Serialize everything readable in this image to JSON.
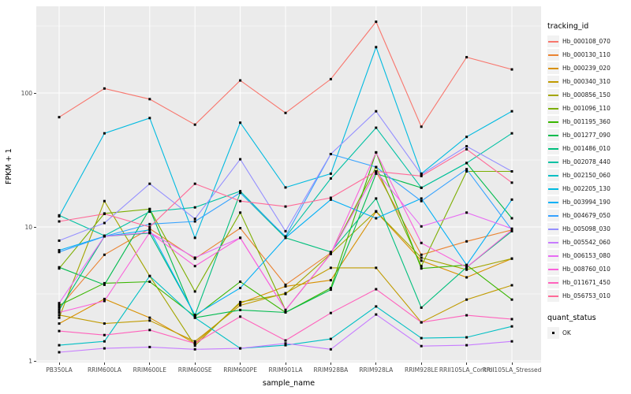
{
  "figure": {
    "background": "#FFFFFF",
    "panel_background": "#EBEBEB",
    "grid_color": "#FFFFFF",
    "tick_color": "#333333",
    "tick_label_color": "#4D4D4D",
    "point_color": "#000000"
  },
  "chart_data": {
    "type": "line",
    "title": "",
    "xlabel": "sample_name",
    "ylabel": "FPKM + 1",
    "y_scale": "log10",
    "ylim": [
      1,
      450
    ],
    "y_ticks": [
      1,
      10,
      100
    ],
    "y_minor_ticks": [
      3.162,
      31.62,
      316.2
    ],
    "grid": "on",
    "point_shape": "square",
    "legend": {
      "title": "tracking_id",
      "position": "right"
    },
    "legend2": {
      "title": "quant_status",
      "items": [
        {
          "label": "OK",
          "marker": "black-square"
        }
      ]
    },
    "categories": [
      "PB350LA",
      "RRIM600LA",
      "RRIM600LE",
      "RRIM600SE",
      "RRIM600PE",
      "RRIM901LA",
      "RRIM928BA",
      "RRIM928LA",
      "RRIM928LE",
      "RRII105LA_Control",
      "RRII105LA_Stressed"
    ],
    "series": [
      {
        "name": "Hb_000108_070",
        "color": "#F8766D",
        "values": [
          66,
          108,
          90,
          58,
          124,
          71,
          127,
          340,
          56,
          185,
          150
        ]
      },
      {
        "name": "Hb_000130_110",
        "color": "#EA8331",
        "values": [
          2.5,
          6.2,
          9.7,
          5.8,
          9.8,
          3.7,
          6.4,
          26,
          6.2,
          7.8,
          9.5
        ]
      },
      {
        "name": "Hb_000239_020",
        "color": "#D89000",
        "values": [
          1.9,
          2.9,
          2.1,
          1.35,
          2.7,
          3.6,
          4.0,
          13,
          5.6,
          4.2,
          5.8
        ]
      },
      {
        "name": "Hb_000340_310",
        "color": "#C09B00",
        "values": [
          2.2,
          1.9,
          2.0,
          1.4,
          2.6,
          3.2,
          4.95,
          4.95,
          1.94,
          2.87,
          3.67
        ]
      },
      {
        "name": "Hb_000856_150",
        "color": "#A3A500",
        "values": [
          2.1,
          15.6,
          4.3,
          1.3,
          2.75,
          3.16,
          6.3,
          13.1,
          5.9,
          4.8,
          5.8
        ]
      },
      {
        "name": "Hb_001096_110",
        "color": "#7CAE00",
        "values": [
          4.9,
          12.6,
          13.6,
          3.3,
          12.8,
          2.4,
          6.3,
          28,
          5.1,
          26,
          26
        ]
      },
      {
        "name": "Hb_001195_360",
        "color": "#39B600",
        "values": [
          2.6,
          3.8,
          3.9,
          2.15,
          3.9,
          2.3,
          3.5,
          36,
          4.9,
          5.2,
          2.87
        ]
      },
      {
        "name": "Hb_001277_090",
        "color": "#00BB4E",
        "values": [
          5.0,
          3.7,
          13.6,
          2.1,
          2.4,
          2.3,
          3.4,
          25,
          19.6,
          30,
          11.6
        ]
      },
      {
        "name": "Hb_001486_010",
        "color": "#00BF7D",
        "values": [
          2.4,
          8.5,
          9.0,
          2.2,
          18,
          8.3,
          6.5,
          16.3,
          2.5,
          5.0,
          9.3
        ]
      },
      {
        "name": "Hb_002078_440",
        "color": "#00C1A3",
        "values": [
          12.2,
          8.6,
          13.0,
          14,
          18.5,
          8.4,
          23,
          55,
          19.6,
          30,
          50
        ]
      },
      {
        "name": "Hb_002150_060",
        "color": "#00BFC4",
        "values": [
          1.31,
          1.4,
          4.3,
          2.1,
          1.24,
          1.31,
          1.46,
          2.55,
          1.48,
          1.5,
          1.81
        ]
      },
      {
        "name": "Hb_002205_130",
        "color": "#00BAE0",
        "values": [
          12,
          50,
          65,
          8.3,
          60,
          19.7,
          25,
          220,
          25,
          47,
          73
        ]
      },
      {
        "name": "Hb_003994_190",
        "color": "#00B0F6",
        "values": [
          6.7,
          8.5,
          9.5,
          2.2,
          3.5,
          8.3,
          16,
          11.6,
          16.3,
          5.2,
          16
        ]
      },
      {
        "name": "Hb_004679_050",
        "color": "#35A2FF",
        "values": [
          6.5,
          8.5,
          10.5,
          11,
          18,
          8.5,
          35,
          28,
          15.6,
          27,
          9.5
        ]
      },
      {
        "name": "Hb_005098_030",
        "color": "#9590FF",
        "values": [
          7.9,
          10.7,
          21,
          11.5,
          32,
          9.3,
          35,
          73,
          24.6,
          40,
          26
        ]
      },
      {
        "name": "Hb_005542_060",
        "color": "#C77CFF",
        "values": [
          1.16,
          1.24,
          1.27,
          1.22,
          1.24,
          1.35,
          1.22,
          2.22,
          1.29,
          1.31,
          1.4
        ]
      },
      {
        "name": "Hb_006153_080",
        "color": "#E76BF3",
        "values": [
          2.7,
          8.5,
          9.1,
          5.9,
          8.3,
          2.4,
          6.3,
          26,
          10.1,
          12.8,
          9.7
        ]
      },
      {
        "name": "Hb_008760_010",
        "color": "#FA62DB",
        "values": [
          2.3,
          2.8,
          9.1,
          5.1,
          8.3,
          2.4,
          6.3,
          36,
          7.6,
          5.0,
          9.5
        ]
      },
      {
        "name": "Hb_011671_450",
        "color": "#FF62BC",
        "values": [
          1.67,
          1.56,
          1.7,
          1.35,
          2.14,
          1.42,
          2.28,
          3.43,
          1.94,
          2.19,
          2.05
        ]
      },
      {
        "name": "Hb_056753_010",
        "color": "#FF6A98",
        "values": [
          11,
          12.5,
          10,
          21,
          15.6,
          14.2,
          16.5,
          26,
          24,
          38,
          21.4
        ]
      }
    ]
  }
}
